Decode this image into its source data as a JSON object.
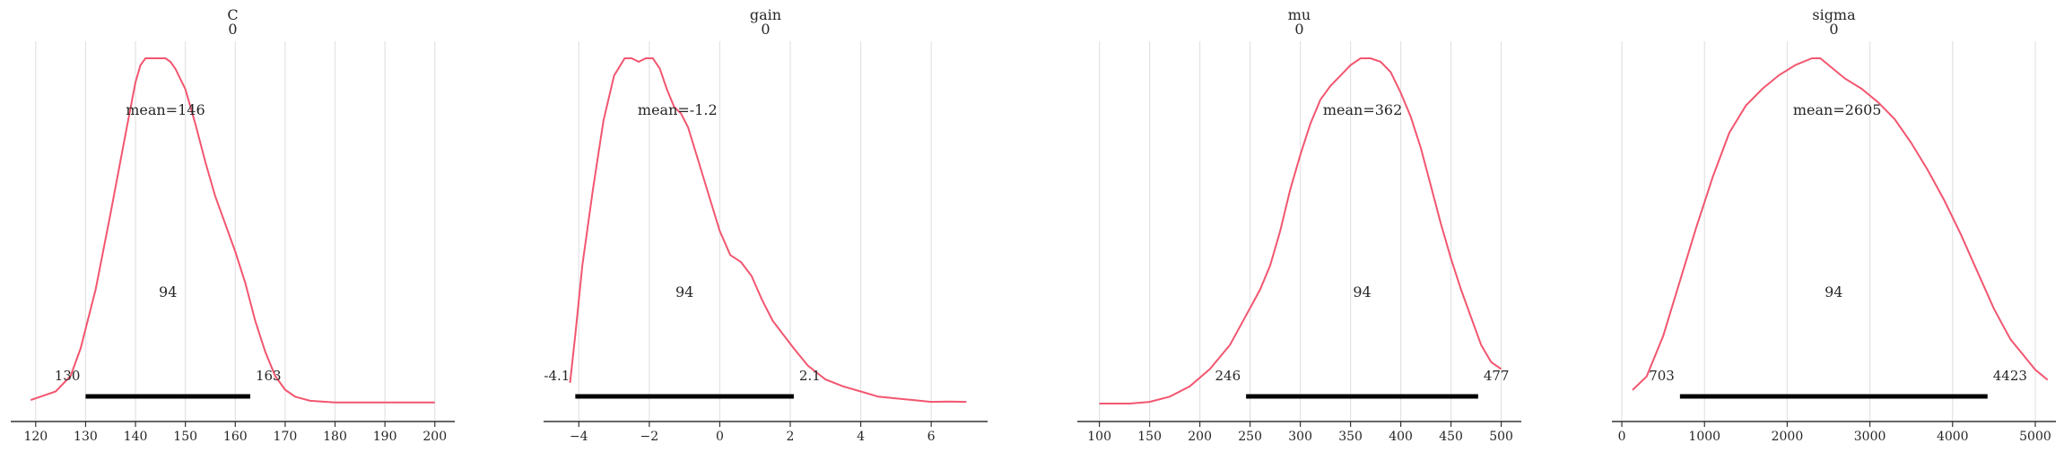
{
  "chart_data": [
    {
      "type": "line",
      "title": "C",
      "subtitle": "0",
      "xlim": [
        115,
        204
      ],
      "x_ticks": [
        120,
        130,
        140,
        150,
        160,
        170,
        180,
        190,
        200
      ],
      "line_color": "#f2566f",
      "grid": "vertical",
      "mean": 146,
      "mean_label": "mean=146",
      "hdi_prob_label": "94",
      "hdi_low": 130,
      "hdi_high": 163,
      "hdi_low_label": "130",
      "hdi_high_label": "163",
      "density": {
        "x": [
          119,
          124,
          127,
          129,
          132,
          135,
          138,
          140,
          141,
          142,
          143,
          144,
          145,
          146,
          147,
          148,
          150,
          152,
          154,
          156,
          158,
          160,
          162,
          164,
          166,
          168,
          170,
          172,
          175,
          180,
          190,
          200
        ],
        "y": [
          0.01,
          0.035,
          0.08,
          0.16,
          0.33,
          0.55,
          0.78,
          0.93,
          0.98,
          1.0,
          1.0,
          1.0,
          1.0,
          1.0,
          0.99,
          0.97,
          0.91,
          0.81,
          0.7,
          0.6,
          0.52,
          0.44,
          0.35,
          0.24,
          0.15,
          0.08,
          0.04,
          0.02,
          0.008,
          0.003,
          0.003,
          0.003
        ]
      }
    },
    {
      "type": "line",
      "title": "gain",
      "subtitle": "0",
      "xlim": [
        -5,
        7.6
      ],
      "x_ticks": [
        -4,
        -2,
        0,
        2,
        4,
        6
      ],
      "line_color": "#f2566f",
      "grid": "vertical",
      "mean": -1.2,
      "mean_label": "mean=-1.2",
      "hdi_prob_label": "94",
      "hdi_low": -4.1,
      "hdi_high": 2.1,
      "hdi_low_label": "-4.1",
      "hdi_high_label": "2.1",
      "density": {
        "x": [
          -4.25,
          -4.1,
          -3.9,
          -3.6,
          -3.3,
          -3.0,
          -2.7,
          -2.5,
          -2.3,
          -2.1,
          -1.9,
          -1.7,
          -1.5,
          -1.3,
          -1.1,
          -0.9,
          -0.6,
          -0.3,
          0.0,
          0.3,
          0.6,
          0.9,
          1.2,
          1.5,
          1.8,
          2.1,
          2.5,
          3.0,
          3.5,
          4.0,
          4.5,
          5.0,
          5.5,
          6.0,
          6.5,
          7.0
        ],
        "y": [
          0.06,
          0.2,
          0.4,
          0.62,
          0.82,
          0.95,
          1.0,
          1.0,
          0.99,
          1.0,
          1.0,
          0.97,
          0.91,
          0.86,
          0.84,
          0.8,
          0.7,
          0.6,
          0.5,
          0.43,
          0.41,
          0.37,
          0.3,
          0.24,
          0.2,
          0.16,
          0.11,
          0.07,
          0.05,
          0.035,
          0.02,
          0.015,
          0.01,
          0.005,
          0.006,
          0.005
        ]
      }
    },
    {
      "type": "line",
      "title": "mu",
      "subtitle": "0",
      "xlim": [
        78,
        520
      ],
      "x_ticks": [
        100,
        150,
        200,
        250,
        300,
        350,
        400,
        450,
        500
      ],
      "line_color": "#f2566f",
      "grid": "vertical",
      "mean": 362,
      "mean_label": "mean=362",
      "hdi_prob_label": "94",
      "hdi_low": 246,
      "hdi_high": 477,
      "hdi_low_label": "246",
      "hdi_high_label": "477",
      "density": {
        "x": [
          100,
          130,
          150,
          170,
          190,
          210,
          230,
          245,
          260,
          270,
          280,
          290,
          300,
          310,
          320,
          330,
          340,
          350,
          360,
          370,
          380,
          390,
          400,
          410,
          420,
          430,
          440,
          450,
          460,
          470,
          480,
          490,
          500
        ],
        "y": [
          0.0,
          0.0,
          0.005,
          0.02,
          0.05,
          0.1,
          0.17,
          0.25,
          0.33,
          0.4,
          0.5,
          0.62,
          0.72,
          0.81,
          0.88,
          0.92,
          0.95,
          0.98,
          1.0,
          1.0,
          0.99,
          0.96,
          0.9,
          0.83,
          0.74,
          0.63,
          0.52,
          0.42,
          0.33,
          0.25,
          0.17,
          0.12,
          0.1
        ]
      }
    },
    {
      "type": "line",
      "title": "sigma",
      "subtitle": "0",
      "xlim": [
        -120,
        5250
      ],
      "x_ticks": [
        0,
        1000,
        2000,
        3000,
        4000,
        5000
      ],
      "line_color": "#f2566f",
      "grid": "vertical",
      "mean": 2605,
      "mean_label": "mean=2605",
      "hdi_prob_label": "94",
      "hdi_low": 703,
      "hdi_high": 4423,
      "hdi_low_label": "703",
      "hdi_high_label": "4423",
      "density": {
        "x": [
          130,
          300,
          500,
          700,
          900,
          1100,
          1300,
          1500,
          1700,
          1900,
          2100,
          2300,
          2400,
          2500,
          2700,
          2900,
          3100,
          3300,
          3500,
          3700,
          3900,
          4100,
          4300,
          4500,
          4700,
          4900,
          5000,
          5150
        ],
        "y": [
          0.04,
          0.08,
          0.2,
          0.36,
          0.52,
          0.67,
          0.8,
          0.88,
          0.93,
          0.97,
          1.0,
          1.02,
          1.02,
          1.0,
          0.96,
          0.93,
          0.89,
          0.84,
          0.77,
          0.69,
          0.6,
          0.5,
          0.39,
          0.28,
          0.19,
          0.13,
          0.1,
          0.07
        ]
      }
    }
  ]
}
